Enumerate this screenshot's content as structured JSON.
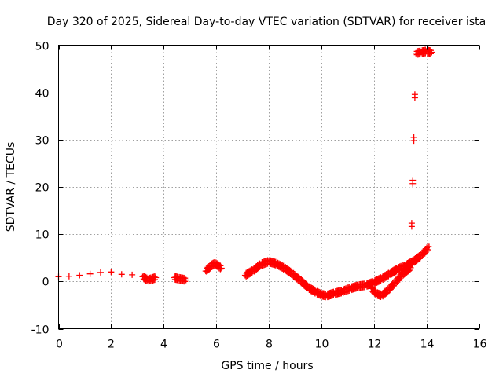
{
  "chart_data": {
    "type": "scatter",
    "title": "Day 320 of 2025, Sidereal Day-to-day VTEC variation (SDTVAR) for receiver ista",
    "xlabel": "GPS time / hours",
    "ylabel": "SDTVAR / TECUs",
    "xlim": [
      0,
      16
    ],
    "ylim": [
      -10,
      50
    ],
    "xticks": [
      "0",
      "2",
      "4",
      "6",
      "8",
      "10",
      "12",
      "14",
      "16"
    ],
    "yticks": [
      "-10",
      "0",
      "10",
      "20",
      "30",
      "40",
      "50"
    ],
    "grid": true,
    "marker": "plus",
    "color": "#ff0000",
    "series": [
      {
        "name": "SDTVAR",
        "anchors": [
          [
            0.0,
            1.0
          ],
          [
            0.4,
            1.1
          ],
          [
            0.8,
            1.3
          ],
          [
            1.2,
            1.6
          ],
          [
            1.6,
            1.9
          ],
          [
            2.0,
            2.0
          ],
          [
            2.4,
            1.5
          ],
          [
            2.8,
            1.4
          ],
          [
            3.2,
            1.0
          ],
          [
            3.4,
            0.3
          ],
          [
            3.55,
            0.5
          ],
          [
            3.7,
            0.8
          ],
          [
            4.4,
            0.8
          ],
          [
            4.55,
            0.6
          ],
          [
            4.85,
            0.3
          ],
          [
            5.6,
            2.2
          ],
          [
            5.8,
            3.3
          ],
          [
            5.95,
            3.8
          ],
          [
            6.2,
            2.8
          ],
          [
            7.1,
            1.3
          ],
          [
            7.4,
            2.3
          ],
          [
            7.7,
            3.6
          ],
          [
            8.0,
            4.2
          ],
          [
            8.3,
            3.7
          ],
          [
            8.6,
            2.8
          ],
          [
            8.9,
            1.6
          ],
          [
            9.2,
            0.2
          ],
          [
            9.5,
            -1.3
          ],
          [
            9.8,
            -2.3
          ],
          [
            10.0,
            -2.8
          ],
          [
            10.2,
            -3.0
          ],
          [
            10.5,
            -2.5
          ],
          [
            10.8,
            -2.1
          ],
          [
            11.1,
            -1.5
          ],
          [
            11.4,
            -1.0
          ],
          [
            11.7,
            -0.8
          ],
          [
            12.0,
            -0.2
          ],
          [
            12.3,
            0.6
          ],
          [
            12.6,
            1.6
          ],
          [
            12.9,
            2.6
          ],
          [
            13.2,
            3.3
          ],
          [
            13.5,
            4.2
          ],
          [
            13.8,
            5.5
          ],
          [
            14.1,
            7.3
          ],
          [
            11.9,
            -1.5
          ],
          [
            12.1,
            -2.6
          ],
          [
            12.3,
            -3.0
          ],
          [
            12.55,
            -1.8
          ],
          [
            12.8,
            -0.3
          ],
          [
            13.1,
            1.6
          ],
          [
            13.4,
            2.9
          ],
          [
            13.6,
            48.3
          ],
          [
            13.8,
            48.5
          ],
          [
            14.0,
            48.7
          ],
          [
            14.2,
            48.5
          ]
        ]
      }
    ]
  }
}
